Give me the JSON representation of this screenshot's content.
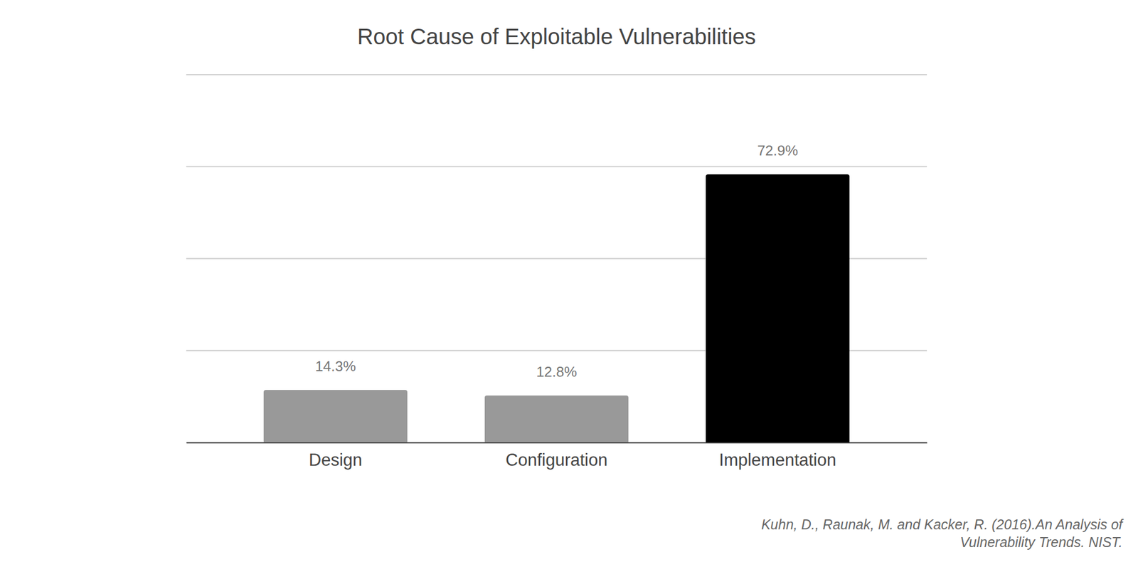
{
  "chart_data": {
    "type": "bar",
    "title": "Root Cause of Exploitable Vulnerabilities",
    "categories": [
      "Design",
      "Configuration",
      "Implementation"
    ],
    "values": [
      14.3,
      12.8,
      72.9
    ],
    "value_labels": [
      "14.3%",
      "12.8%",
      "72.9%"
    ],
    "colors": [
      "#999999",
      "#999999",
      "#000000"
    ],
    "ylim": [
      0,
      100
    ],
    "yticks": [
      0,
      25,
      50,
      75,
      100
    ],
    "grid": true,
    "data_labels": true,
    "tick_labels": "x",
    "annotations": [
      "Kuhn, D., Raunak, M. and Kacker, R. (2016).An Analysis of",
      "Vulnerability Trends. NIST."
    ]
  }
}
